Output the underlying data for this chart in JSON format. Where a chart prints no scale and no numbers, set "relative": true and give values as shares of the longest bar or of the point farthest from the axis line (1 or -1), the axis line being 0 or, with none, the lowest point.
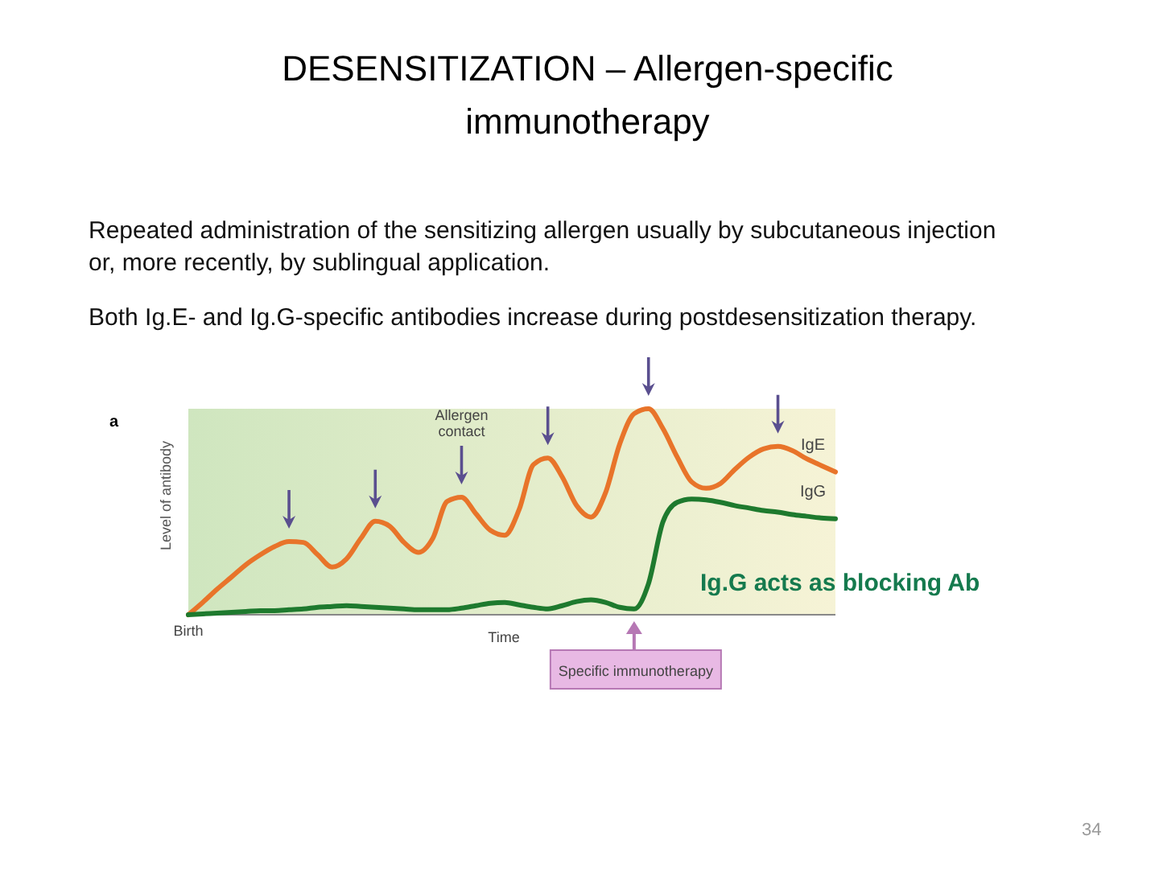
{
  "chart_data": {
    "type": "line",
    "title": "DESENSITIZATION – Allergen-specific immunotherapy",
    "subtitle": "Repeated administration of the sensitizing allergen usually by subcutaneous injection or, more recently, by sublingual application.",
    "xlabel": "Time",
    "ylabel": "Level of antibody",
    "relative": true,
    "legend": false,
    "marker": "none",
    "line_style": "solid",
    "categories": [
      null,
      null,
      null,
      null,
      null,
      null,
      null,
      null,
      null,
      null,
      null,
      null,
      null,
      null,
      null,
      null,
      null,
      null,
      null,
      null,
      null,
      null,
      null,
      null,
      null,
      null,
      null,
      null,
      null,
      null,
      null,
      null,
      null,
      null,
      null,
      null,
      null,
      null,
      null,
      null,
      null,
      null,
      null,
      null,
      null,
      null
    ],
    "series": [
      {
        "name": "IgE",
        "color": "#e8742a",
        "values": [
          0,
          0.06,
          0.124,
          0.183,
          0.243,
          0.291,
          0.331,
          0.355,
          0.351,
          0.291,
          0.231,
          0.271,
          0.371,
          0.454,
          0.43,
          0.351,
          0.303,
          0.371,
          0.55,
          0.57,
          0.49,
          0.41,
          0.386,
          0.51,
          0.729,
          0.761,
          0.669,
          0.53,
          0.474,
          0.59,
          0.829,
          0.976,
          1,
          0.904,
          0.765,
          0.645,
          0.614,
          0.637,
          0.705,
          0.765,
          0.805,
          0.817,
          0.797,
          0.757,
          0.725,
          0.693
        ]
      },
      {
        "name": "IgG",
        "color": "#1e7a2e",
        "values": [
          0,
          0.004,
          0.008,
          0.012,
          0.016,
          0.02,
          0.02,
          0.024,
          0.028,
          0.036,
          0.04,
          0.044,
          0.04,
          0.036,
          0.032,
          0.028,
          0.024,
          0.024,
          0.024,
          0.032,
          0.044,
          0.056,
          0.06,
          0.048,
          0.036,
          0.028,
          0.044,
          0.064,
          0.072,
          0.06,
          0.036,
          0.028,
          0.151,
          0.45,
          0.546,
          0.562,
          0.558,
          0.546,
          0.53,
          0.518,
          0.506,
          0.498,
          0.486,
          0.478,
          0.47,
          0.466
        ]
      }
    ],
    "annotations": [
      "Both Ig.E- and Ig.G-specific antibodies increase during postdesensitization therapy.",
      "a",
      "Allergen contact",
      "Ig.G acts as blocking Ab",
      "Specific immunotherapy",
      "34",
      "Birth"
    ]
  }
}
